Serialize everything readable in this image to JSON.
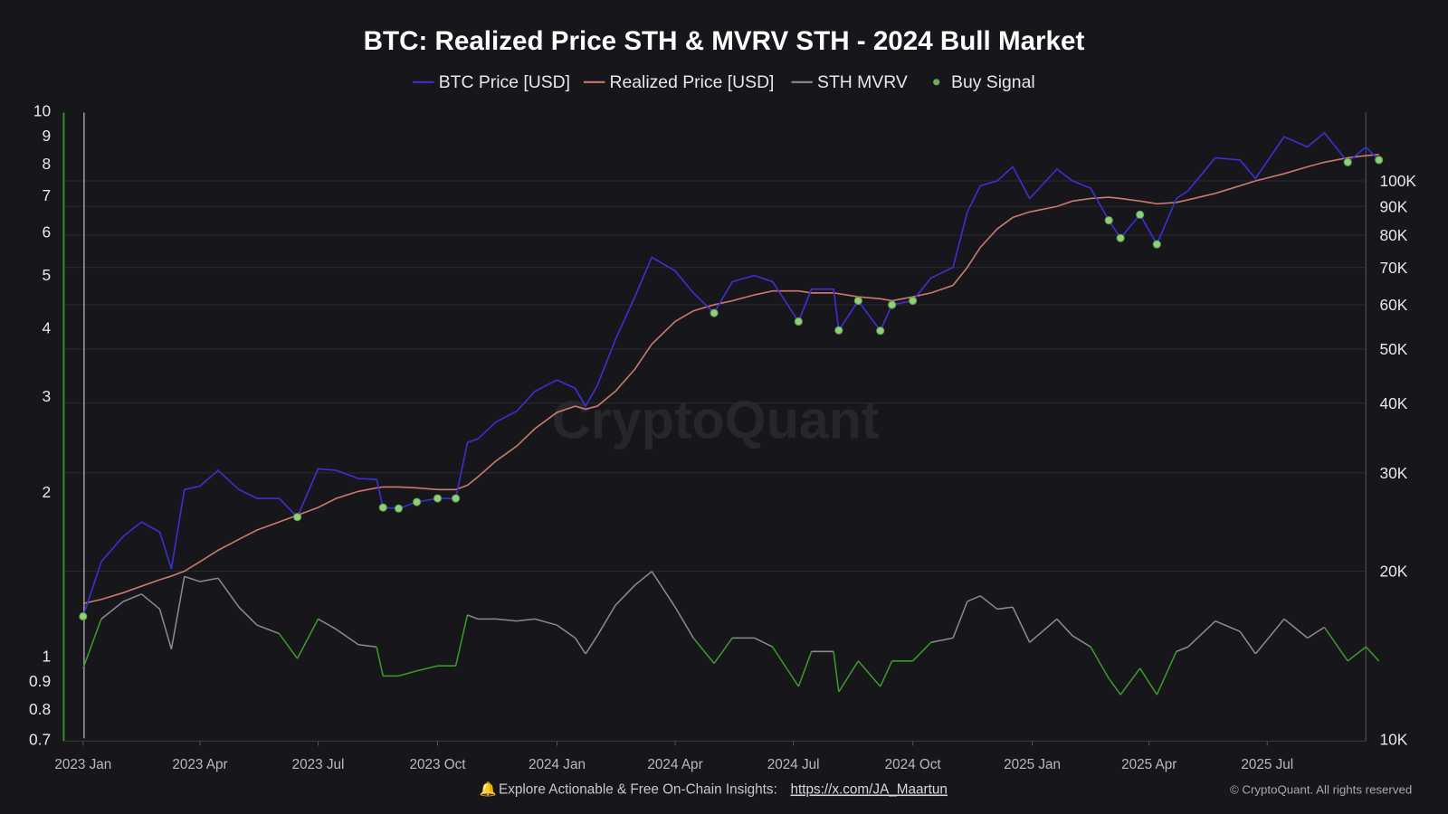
{
  "chart_data": {
    "type": "line",
    "title": "BTC: Realized Price STH & MVRV STH - 2024 Bull Market",
    "legend": {
      "placement": "top-center",
      "items": [
        {
          "label": "BTC Price [USD]",
          "color": "#3d2fd0",
          "marker": "line"
        },
        {
          "label": "Realized Price [USD]",
          "color": "#c9796d",
          "marker": "line"
        },
        {
          "label": "STH MVRV",
          "color": "#8a8a90",
          "marker": "line"
        },
        {
          "label": "Buy Signal",
          "color": "#8fd07a",
          "marker": "dot"
        }
      ]
    },
    "watermark": "CryptoQuant",
    "x_axis": {
      "type": "date",
      "range": [
        "2023-01-01",
        "2025-09-25"
      ],
      "tick_dates": [
        "2023-01-01",
        "2023-04-01",
        "2023-07-01",
        "2023-10-01",
        "2024-01-01",
        "2024-04-01",
        "2024-07-01",
        "2024-10-01",
        "2025-01-01",
        "2025-04-01",
        "2025-07-01"
      ],
      "tick_labels": [
        "2023 Jan",
        "2023 Apr",
        "2023 Jul",
        "2023 Oct",
        "2024 Jan",
        "2024 Apr",
        "2024 Jul",
        "2024 Oct",
        "2025 Jan",
        "2025 Apr",
        "2025 Jul"
      ]
    },
    "y_left": {
      "scale": "log",
      "range": [
        0.7,
        10
      ],
      "series": "STH MVRV",
      "ticks": [
        0.7,
        0.8,
        0.9,
        1,
        2,
        3,
        4,
        5,
        6,
        7,
        8,
        9,
        10
      ],
      "tick_labels": [
        "0.7",
        "0.8",
        "0.9",
        "1",
        "2",
        "3",
        "4",
        "5",
        "6",
        "7",
        "8",
        "9",
        "10"
      ]
    },
    "y_right": {
      "scale": "log",
      "range": [
        10000,
        133000
      ],
      "unit": "USD",
      "ticks": [
        10000,
        20000,
        30000,
        40000,
        50000,
        60000,
        70000,
        80000,
        90000,
        100000
      ],
      "tick_labels": [
        "10K",
        "20K",
        "30K",
        "40K",
        "50K",
        "60K",
        "70K",
        "80K",
        "90K",
        "100K"
      ],
      "grid": true
    },
    "mvrv_threshold_color": "#3c9a2a",
    "dates": [
      "2023-01-01",
      "2023-01-15",
      "2023-02-01",
      "2023-02-15",
      "2023-03-01",
      "2023-03-10",
      "2023-03-20",
      "2023-04-01",
      "2023-04-15",
      "2023-05-01",
      "2023-05-15",
      "2023-06-01",
      "2023-06-15",
      "2023-07-01",
      "2023-07-15",
      "2023-08-01",
      "2023-08-15",
      "2023-08-20",
      "2023-09-01",
      "2023-09-15",
      "2023-10-01",
      "2023-10-15",
      "2023-10-24",
      "2023-11-01",
      "2023-11-15",
      "2023-12-01",
      "2023-12-15",
      "2024-01-01",
      "2024-01-15",
      "2024-01-23",
      "2024-02-01",
      "2024-02-15",
      "2024-03-01",
      "2024-03-14",
      "2024-04-01",
      "2024-04-15",
      "2024-05-01",
      "2024-05-15",
      "2024-06-01",
      "2024-06-15",
      "2024-07-05",
      "2024-07-15",
      "2024-08-01",
      "2024-08-05",
      "2024-08-20",
      "2024-09-06",
      "2024-09-15",
      "2024-10-01",
      "2024-10-15",
      "2024-11-01",
      "2024-11-12",
      "2024-11-22",
      "2024-12-05",
      "2024-12-17",
      "2024-12-30",
      "2025-01-20",
      "2025-02-01",
      "2025-02-15",
      "2025-03-01",
      "2025-03-10",
      "2025-03-25",
      "2025-04-07",
      "2025-04-22",
      "2025-05-01",
      "2025-05-22",
      "2025-06-10",
      "2025-06-22",
      "2025-07-14",
      "2025-08-01",
      "2025-08-14",
      "2025-09-01",
      "2025-09-15",
      "2025-09-25"
    ],
    "series": [
      {
        "name": "BTC Price [USD]",
        "axis": "right",
        "values": [
          16600,
          20800,
          23100,
          24500,
          23500,
          20200,
          28000,
          28400,
          30300,
          28000,
          27000,
          27000,
          25000,
          30500,
          30300,
          29300,
          29200,
          26000,
          25900,
          26600,
          27000,
          27000,
          34000,
          34500,
          37000,
          38700,
          42000,
          44000,
          42500,
          39500,
          43000,
          52000,
          62000,
          73000,
          69000,
          63000,
          58000,
          66000,
          67700,
          66000,
          56000,
          64000,
          64000,
          54000,
          61000,
          53900,
          60000,
          61000,
          67000,
          70000,
          88000,
          98000,
          100000,
          106000,
          93000,
          105000,
          100000,
          97000,
          85000,
          79000,
          87000,
          77000,
          93000,
          96000,
          110000,
          109000,
          101000,
          120000,
          115000,
          122000,
          108000,
          115000,
          109000
        ]
      },
      {
        "name": "Realized Price [USD]",
        "axis": "right",
        "values": [
          17500,
          17800,
          18300,
          18800,
          19300,
          19600,
          20000,
          20800,
          21800,
          22800,
          23700,
          24500,
          25200,
          26000,
          27000,
          27800,
          28200,
          28300,
          28300,
          28200,
          28000,
          28000,
          28500,
          29500,
          31500,
          33500,
          36000,
          38500,
          39500,
          39000,
          39500,
          42000,
          46000,
          51000,
          56000,
          58500,
          60000,
          61000,
          62500,
          63500,
          63500,
          63000,
          63000,
          62800,
          62000,
          61500,
          61000,
          62000,
          63000,
          65000,
          70000,
          76000,
          82000,
          86000,
          88000,
          90000,
          92000,
          93000,
          93500,
          93000,
          92000,
          91000,
          91500,
          92500,
          95000,
          98000,
          100000,
          103000,
          106000,
          108000,
          110000,
          111000,
          111500
        ]
      },
      {
        "name": "STH MVRV",
        "axis": "left",
        "values": [
          0.95,
          1.17,
          1.26,
          1.3,
          1.22,
          1.03,
          1.4,
          1.37,
          1.39,
          1.23,
          1.14,
          1.1,
          0.99,
          1.17,
          1.12,
          1.05,
          1.04,
          0.92,
          0.92,
          0.94,
          0.96,
          0.96,
          1.19,
          1.17,
          1.17,
          1.16,
          1.17,
          1.14,
          1.08,
          1.01,
          1.09,
          1.24,
          1.35,
          1.43,
          1.23,
          1.08,
          0.97,
          1.08,
          1.08,
          1.04,
          0.88,
          1.02,
          1.02,
          0.86,
          0.98,
          0.88,
          0.98,
          0.98,
          1.06,
          1.08,
          1.26,
          1.29,
          1.22,
          1.23,
          1.06,
          1.17,
          1.09,
          1.04,
          0.91,
          0.85,
          0.95,
          0.85,
          1.02,
          1.04,
          1.16,
          1.11,
          1.01,
          1.17,
          1.08,
          1.13,
          0.98,
          1.04,
          0.98
        ]
      }
    ]
  },
  "footer": {
    "bell_icon": "bell-icon",
    "text": "Explore Actionable & Free On-Chain Insights:",
    "link": "https://x.com/JA_Maartun",
    "copyright": "© CryptoQuant. All rights reserved"
  }
}
